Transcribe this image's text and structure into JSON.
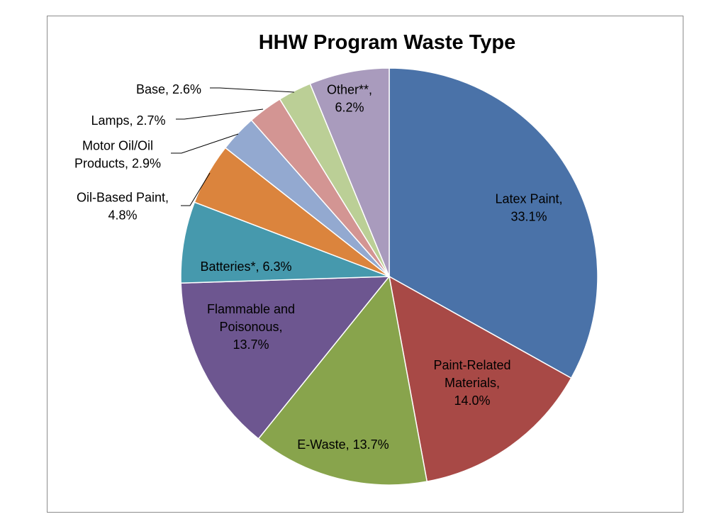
{
  "chart_data": {
    "type": "pie",
    "title": "HHW Program Waste Type",
    "slices": [
      {
        "label": "Latex Paint, 33.1%",
        "value": 33.1,
        "color": "#4A72A8"
      },
      {
        "label": "Paint-Related Materials, 14.0%",
        "value": 14.0,
        "color": "#A84946"
      },
      {
        "label": "E-Waste, 13.7%",
        "value": 13.7,
        "color": "#88A44C"
      },
      {
        "label": "Flammable and Poisonous, 13.7%",
        "value": 13.7,
        "color": "#6D5690"
      },
      {
        "label": "Batteries*, 6.3%",
        "value": 6.3,
        "color": "#4699AD"
      },
      {
        "label": "Oil-Based Paint, 4.8%",
        "value": 4.8,
        "color": "#DB843D"
      },
      {
        "label": "Motor Oil/Oil Products, 2.9%",
        "value": 2.9,
        "color": "#93A9D0"
      },
      {
        "label": "Lamps, 2.7%",
        "value": 2.7,
        "color": "#D39593"
      },
      {
        "label": "Base, 2.6%",
        "value": 2.6,
        "color": "#BBCF96"
      },
      {
        "label": "Other**, 6.2%",
        "value": 6.2,
        "color": "#A99BBD"
      }
    ],
    "label_lines": [
      [
        "Latex Paint,",
        "33.1%"
      ],
      [
        "Paint-Related",
        "Materials,",
        "14.0%"
      ],
      [
        "E-Waste, 13.7%"
      ],
      [
        "Flammable and",
        "Poisonous,",
        "13.7%"
      ],
      [
        "Batteries*, 6.3%"
      ],
      [
        "Oil-Based Paint,",
        "4.8%"
      ],
      [
        "Motor Oil/Oil",
        "Products, 2.9%"
      ],
      [
        "Lamps, 2.7%"
      ],
      [
        "Base, 2.6%"
      ],
      [
        "Other**,",
        "6.2%"
      ]
    ]
  }
}
